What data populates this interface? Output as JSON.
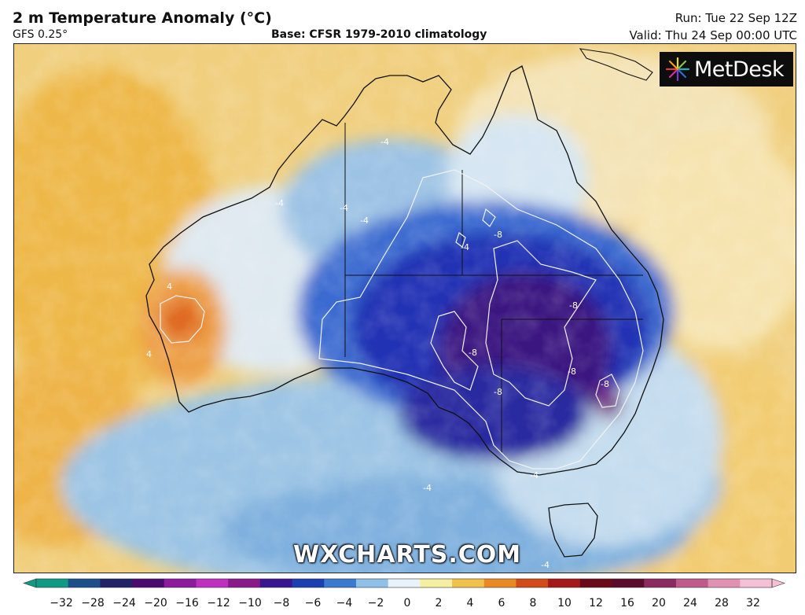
{
  "header": {
    "title": "2 m Temperature Anomaly (°C)",
    "model": "GFS 0.25°",
    "base": "Base: CFSR 1979-2010 climatology",
    "run": "Run: Tue 22 Sep 12Z",
    "valid": "Valid: Thu 24 Sep 00:00 UTC"
  },
  "logo": {
    "text": "MetDesk",
    "icon": "metdesk-starburst-icon"
  },
  "watermark": "WXCHARTS.COM",
  "contour_labels": [
    "-4",
    "-4",
    "-4",
    "-4",
    "-4",
    "-4",
    "-4",
    "-8",
    "-8",
    "-8",
    "-8",
    "-8",
    "-8",
    "4",
    "4",
    "-4"
  ],
  "colorscale": {
    "ticks": [
      "−32",
      "−28",
      "−24",
      "−20",
      "−16",
      "−12",
      "−10",
      "−8",
      "−6",
      "−4",
      "−2",
      "0",
      "2",
      "4",
      "6",
      "8",
      "10",
      "12",
      "16",
      "20",
      "24",
      "28",
      "32"
    ],
    "colors": [
      "#0f9a86",
      "#1c4e8a",
      "#222266",
      "#4a0a6e",
      "#8e1a9e",
      "#c030c0",
      "#8a1a8a",
      "#3a1590",
      "#1a3fb0",
      "#3a7ad0",
      "#8fc0e8",
      "#e8f2f8",
      "#f6eea0",
      "#f0c24a",
      "#e88a24",
      "#d24a18",
      "#a41818",
      "#6a0a18",
      "#5a0a2a",
      "#8a2a60",
      "#c05a8a",
      "#e090b0",
      "#f4c0d4"
    ]
  },
  "colors": {
    "deep_cold": "#3a1070",
    "cold": "#1c2aa8",
    "cool": "#5a9ad6",
    "light_cool": "#bcd8ee",
    "neutral": "#eef2f4",
    "warm": "#f2d488",
    "hot": "#e06a1c"
  }
}
